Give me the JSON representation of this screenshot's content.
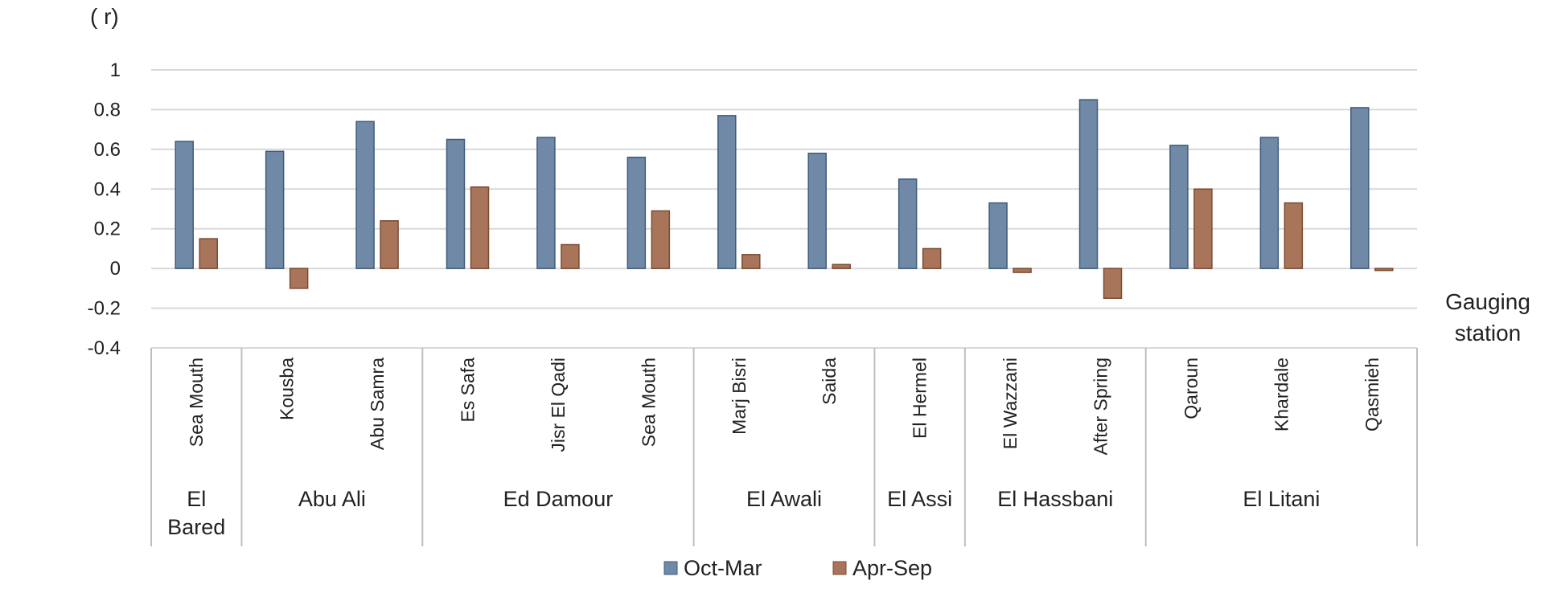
{
  "chart_data": {
    "type": "bar",
    "ylabel": "( r)",
    "xlabel_lines": [
      "Gauging",
      "station"
    ],
    "ylim": [
      -0.4,
      1
    ],
    "yticks": [
      -0.4,
      -0.2,
      0,
      0.2,
      0.4,
      0.6,
      0.8,
      1
    ],
    "ytick_labels": [
      "-0.4",
      "-0.2",
      "0",
      "0.2",
      "0.4",
      "0.6",
      "0.8",
      "1"
    ],
    "grid": true,
    "legend_position": "bottom",
    "categories": [
      "Sea Mouth",
      "Kousba",
      "Abu Samra",
      "Es Safa",
      "Jisr El Qadi",
      "Sea Mouth",
      "Marj Bisri",
      "Saida",
      "El Hermel",
      "El Wazzani",
      "After Spring",
      "Qaroun",
      "Khardale",
      "Qasmieh"
    ],
    "groups": [
      {
        "lines": [
          "El",
          "Bared"
        ],
        "count": 1
      },
      {
        "lines": [
          "Abu Ali"
        ],
        "count": 2
      },
      {
        "lines": [
          "Ed Damour"
        ],
        "count": 3
      },
      {
        "lines": [
          "El Awali"
        ],
        "count": 2
      },
      {
        "lines": [
          "El Assi"
        ],
        "count": 1
      },
      {
        "lines": [
          "El Hassbani"
        ],
        "count": 2
      },
      {
        "lines": [
          "El Litani"
        ],
        "count": 3
      }
    ],
    "series": [
      {
        "name": "Oct-Mar",
        "color": "#6f89a6",
        "values": [
          0.64,
          0.59,
          0.74,
          0.65,
          0.66,
          0.56,
          0.77,
          0.58,
          0.45,
          0.33,
          0.85,
          0.62,
          0.66,
          0.81
        ]
      },
      {
        "name": "Apr-Sep",
        "color": "#a8755a",
        "values": [
          0.15,
          -0.1,
          0.24,
          0.41,
          0.12,
          0.29,
          0.07,
          0.02,
          0.1,
          -0.02,
          -0.15,
          0.4,
          0.33,
          -0.01
        ]
      }
    ]
  }
}
